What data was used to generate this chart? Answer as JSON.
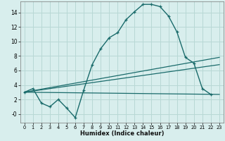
{
  "xlabel": "Humidex (Indice chaleur)",
  "bg_color": "#d8eeed",
  "grid_color": "#b8d8d5",
  "line_color": "#1a6b6b",
  "xlim": [
    -0.5,
    23.5
  ],
  "ylim": [
    -1.2,
    15.5
  ],
  "x_ticks": [
    0,
    1,
    2,
    3,
    4,
    5,
    6,
    7,
    8,
    9,
    10,
    11,
    12,
    13,
    14,
    15,
    16,
    17,
    18,
    19,
    20,
    21,
    22,
    23
  ],
  "y_ticks": [
    0,
    2,
    4,
    6,
    8,
    10,
    12,
    14
  ],
  "curve_x": [
    0,
    1,
    2,
    3,
    4,
    5,
    6,
    7,
    8,
    9,
    10,
    11,
    12,
    13,
    14,
    15,
    16,
    17,
    18,
    19,
    20,
    21,
    22
  ],
  "curve_y": [
    3.0,
    3.5,
    1.5,
    1.0,
    2.0,
    0.8,
    -0.5,
    3.3,
    6.8,
    9.0,
    10.5,
    11.2,
    13.0,
    14.1,
    15.1,
    15.1,
    14.8,
    13.5,
    11.3,
    7.8,
    7.0,
    3.5,
    2.7
  ],
  "line2_x": [
    0,
    23
  ],
  "line2_y": [
    3.0,
    7.8
  ],
  "line3_x": [
    0,
    23
  ],
  "line3_y": [
    3.0,
    6.8
  ],
  "line4_x": [
    0,
    23
  ],
  "line4_y": [
    3.0,
    2.7
  ],
  "extra_curve_x": [
    1,
    2,
    3,
    4,
    5,
    6,
    7
  ],
  "extra_curve_y": [
    3.5,
    1.5,
    1.0,
    2.0,
    0.8,
    -0.5,
    3.3
  ]
}
